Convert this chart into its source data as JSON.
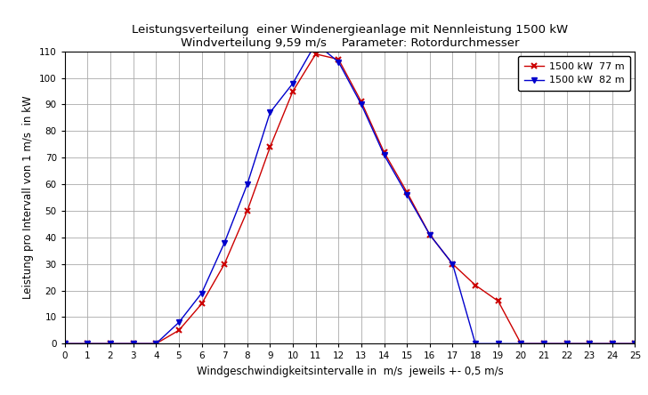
{
  "title_line1": "Leistungsverteilung  einer Windenergieanlage mit Nennleistung 1500 kW",
  "title_line2": "Windverteilung 9,59 m/s    Parameter: Rotordurchmesser",
  "xlabel": "Windgeschwindigkeitsintervalle in  m/s  jeweils +- 0,5 m/s",
  "ylabel": "Leistung pro Intervall von 1 m/s  in kW",
  "x_77": [
    0,
    1,
    2,
    3,
    4,
    5,
    6,
    7,
    8,
    9,
    10,
    11,
    12,
    13,
    14,
    15,
    16,
    17,
    18,
    19,
    20,
    21,
    22,
    23,
    24,
    25
  ],
  "y_77": [
    0,
    0,
    0,
    0,
    0,
    5,
    15,
    30,
    50,
    74,
    95,
    109,
    107,
    91,
    72,
    57,
    41,
    30,
    22,
    16,
    0,
    0,
    0,
    0,
    0,
    0
  ],
  "x_82": [
    0,
    1,
    2,
    3,
    4,
    5,
    6,
    7,
    8,
    9,
    10,
    11,
    12,
    13,
    14,
    15,
    16,
    17,
    18,
    19,
    20,
    21,
    22,
    23,
    24,
    25
  ],
  "y_82": [
    0,
    0,
    0,
    0,
    0,
    8,
    19,
    38,
    60,
    87,
    98,
    113,
    106,
    90,
    71,
    56,
    41,
    30,
    0,
    0,
    0,
    0,
    0,
    0,
    0,
    0
  ],
  "color_77": "#cc0000",
  "color_82": "#0000cc",
  "legend_77": "1500 kW  77 m",
  "legend_82": "1500 kW  82 m",
  "xlim": [
    0,
    25
  ],
  "ylim": [
    0,
    110
  ],
  "xticks": [
    0,
    1,
    2,
    3,
    4,
    5,
    6,
    7,
    8,
    9,
    10,
    11,
    12,
    13,
    14,
    15,
    16,
    17,
    18,
    19,
    20,
    21,
    22,
    23,
    24,
    25
  ],
  "yticks": [
    0,
    10,
    20,
    30,
    40,
    50,
    60,
    70,
    80,
    90,
    100,
    110
  ],
  "grid_color": "#aaaaaa",
  "bg_color": "#ffffff",
  "title_fontsize": 9.5,
  "axis_label_fontsize": 8.5,
  "tick_fontsize": 7.5,
  "legend_fontsize": 8,
  "figsize": [
    7.28,
    4.44
  ],
  "dpi": 100
}
